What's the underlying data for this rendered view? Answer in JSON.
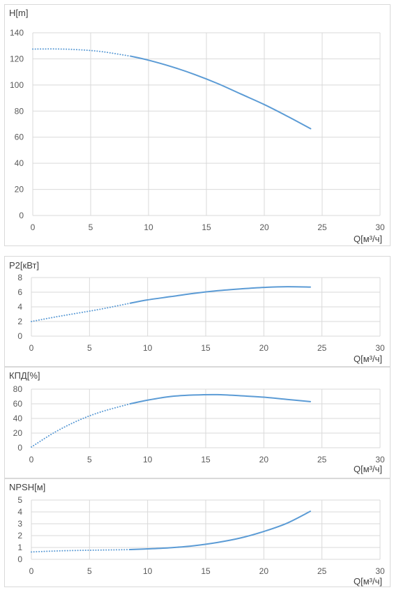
{
  "chart_data": [
    {
      "type": "line",
      "ylabel": "H[m]",
      "xlabel": "Q[м³/ч]",
      "xlim": [
        0,
        30
      ],
      "ylim": [
        0,
        140
      ],
      "xticks": [
        0,
        5,
        10,
        15,
        20,
        25,
        30
      ],
      "yticks": [
        0,
        20,
        40,
        60,
        80,
        100,
        120,
        140
      ],
      "grid": true,
      "color": "#5b9bd5",
      "series": [
        {
          "style": "dotted",
          "x": [
            0,
            2,
            4,
            6,
            8.5
          ],
          "y": [
            127.5,
            127.6,
            127,
            125.5,
            122
          ]
        },
        {
          "style": "solid",
          "x": [
            8.5,
            10,
            12,
            14,
            16,
            18,
            20,
            22,
            24
          ],
          "y": [
            122,
            119,
            114,
            108,
            101,
            93,
            85,
            76,
            66.5
          ]
        }
      ]
    },
    {
      "type": "line",
      "ylabel": "P2[кВт]",
      "xlabel": "Q[м³/ч]",
      "xlim": [
        0,
        30
      ],
      "ylim": [
        0,
        8
      ],
      "xticks": [
        0,
        5,
        10,
        15,
        20,
        25,
        30
      ],
      "yticks": [
        0,
        2,
        4,
        6,
        8
      ],
      "grid": true,
      "color": "#5b9bd5",
      "series": [
        {
          "style": "dotted",
          "x": [
            0,
            2,
            4,
            6,
            8.5
          ],
          "y": [
            2.0,
            2.6,
            3.15,
            3.7,
            4.5
          ]
        },
        {
          "style": "solid",
          "x": [
            8.5,
            10,
            12,
            14,
            16,
            18,
            20,
            22,
            24
          ],
          "y": [
            4.5,
            4.95,
            5.4,
            5.85,
            6.2,
            6.45,
            6.65,
            6.75,
            6.7
          ]
        }
      ]
    },
    {
      "type": "line",
      "ylabel": "КПД[%]",
      "xlabel": "Q[м³/ч]",
      "xlim": [
        0,
        30
      ],
      "ylim": [
        0,
        80
      ],
      "xticks": [
        0,
        5,
        10,
        15,
        20,
        25,
        30
      ],
      "yticks": [
        0,
        20,
        40,
        60,
        80
      ],
      "grid": true,
      "color": "#5b9bd5",
      "series": [
        {
          "style": "dotted",
          "x": [
            0,
            2,
            4,
            6,
            8.5
          ],
          "y": [
            1,
            21,
            37,
            49,
            60
          ]
        },
        {
          "style": "solid",
          "x": [
            8.5,
            10,
            12,
            14,
            16,
            18,
            20,
            22,
            24
          ],
          "y": [
            60,
            65,
            70,
            72,
            72.5,
            71,
            69,
            66,
            63
          ]
        }
      ]
    },
    {
      "type": "line",
      "ylabel": "NPSH[м]",
      "xlabel": "Q[м³/ч]",
      "xlim": [
        0,
        30
      ],
      "ylim": [
        0,
        5
      ],
      "xticks": [
        0,
        5,
        10,
        15,
        20,
        25,
        30
      ],
      "yticks": [
        0,
        1,
        2,
        3,
        4,
        5
      ],
      "grid": true,
      "color": "#5b9bd5",
      "series": [
        {
          "style": "dotted",
          "x": [
            0,
            2,
            4,
            6,
            8.5
          ],
          "y": [
            0.62,
            0.7,
            0.75,
            0.78,
            0.82
          ]
        },
        {
          "style": "solid",
          "x": [
            8.5,
            10,
            12,
            14,
            16,
            18,
            20,
            22,
            24
          ],
          "y": [
            0.82,
            0.88,
            0.98,
            1.15,
            1.42,
            1.8,
            2.35,
            3.05,
            4.05
          ]
        }
      ]
    }
  ]
}
